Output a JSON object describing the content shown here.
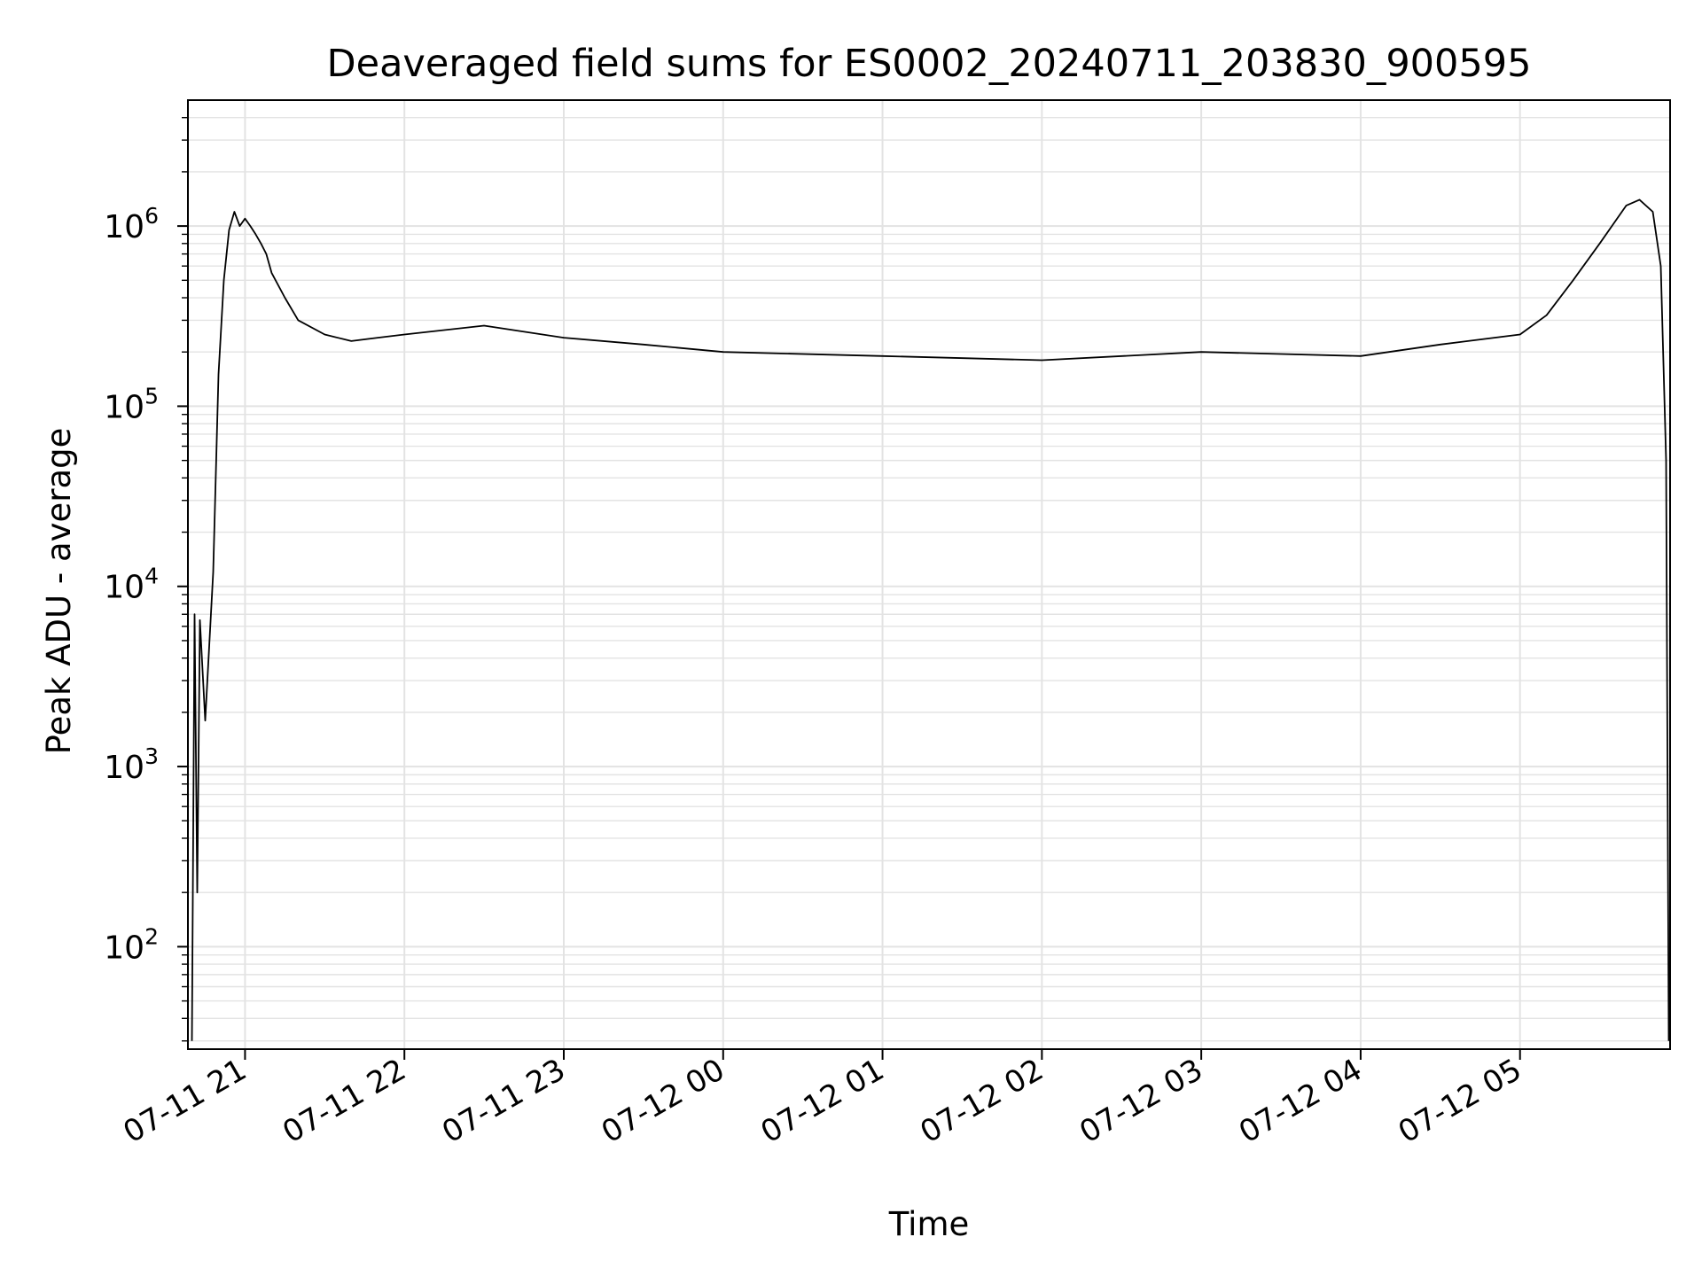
{
  "chart_data": {
    "type": "line",
    "title": "Deaveraged field sums for ES0002_20240711_203830_900595",
    "xlabel": "Time",
    "ylabel": "Peak ADU - average",
    "yscale": "log",
    "ylim": [
      27,
      5000000
    ],
    "xlim": [
      "2024-07-11 20:38:30",
      "2024-07-12 05:56:30"
    ],
    "grid": true,
    "line_color": "#000000",
    "grid_color": "#e3e3e3",
    "xticks": [
      {
        "label": "07-11 21",
        "t": "2024-07-11 21:00"
      },
      {
        "label": "07-11 22",
        "t": "2024-07-11 22:00"
      },
      {
        "label": "07-11 23",
        "t": "2024-07-11 23:00"
      },
      {
        "label": "07-12 00",
        "t": "2024-07-12 00:00"
      },
      {
        "label": "07-12 01",
        "t": "2024-07-12 01:00"
      },
      {
        "label": "07-12 02",
        "t": "2024-07-12 02:00"
      },
      {
        "label": "07-12 03",
        "t": "2024-07-12 03:00"
      },
      {
        "label": "07-12 04",
        "t": "2024-07-12 04:00"
      },
      {
        "label": "07-12 05",
        "t": "2024-07-12 05:00"
      }
    ],
    "yticks": [
      {
        "label": "10",
        "exp": "2",
        "value": 100
      },
      {
        "label": "10",
        "exp": "3",
        "value": 1000
      },
      {
        "label": "10",
        "exp": "4",
        "value": 10000
      },
      {
        "label": "10",
        "exp": "5",
        "value": 100000
      },
      {
        "label": "10",
        "exp": "6",
        "value": 1000000
      }
    ],
    "series": [
      {
        "x": [
          "2024-07-11 20:40:00",
          "2024-07-11 20:41:00",
          "2024-07-11 20:42:00",
          "2024-07-11 20:43:00",
          "2024-07-11 20:45:00",
          "2024-07-11 20:48:00",
          "2024-07-11 20:50:00",
          "2024-07-11 20:52:00",
          "2024-07-11 20:54:00",
          "2024-07-11 20:56:00",
          "2024-07-11 20:58:00",
          "2024-07-11 21:00:00",
          "2024-07-11 21:02:00",
          "2024-07-11 21:04:00",
          "2024-07-11 21:06:00",
          "2024-07-11 21:08:00",
          "2024-07-11 21:10:00",
          "2024-07-11 21:15:00",
          "2024-07-11 21:20:00",
          "2024-07-11 21:30:00",
          "2024-07-11 21:40:00",
          "2024-07-11 21:50:00",
          "2024-07-11 22:00:00",
          "2024-07-11 22:30:00",
          "2024-07-11 23:00:00",
          "2024-07-11 23:30:00",
          "2024-07-12 00:00:00",
          "2024-07-12 01:00:00",
          "2024-07-12 02:00:00",
          "2024-07-12 03:00:00",
          "2024-07-12 04:00:00",
          "2024-07-12 04:30:00",
          "2024-07-12 05:00:00",
          "2024-07-12 05:10:00",
          "2024-07-12 05:20:00",
          "2024-07-12 05:30:00",
          "2024-07-12 05:40:00",
          "2024-07-12 05:45:00",
          "2024-07-12 05:50:00",
          "2024-07-12 05:53:00",
          "2024-07-12 05:55:00",
          "2024-07-12 05:56:00"
        ],
        "values": [
          30,
          7000,
          200,
          6500,
          1800,
          12000,
          150000,
          500000,
          950000,
          1200000,
          1000000,
          1100000,
          1000000,
          900000,
          800000,
          700000,
          550000,
          400000,
          300000,
          250000,
          230000,
          240000,
          250000,
          280000,
          240000,
          220000,
          200000,
          190000,
          180000,
          200000,
          190000,
          220000,
          250000,
          320000,
          500000,
          800000,
          1300000,
          1400000,
          1200000,
          600000,
          50000,
          30
        ]
      }
    ]
  }
}
